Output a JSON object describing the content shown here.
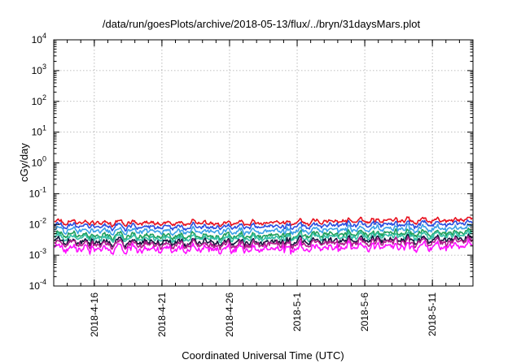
{
  "chart_data": {
    "type": "line",
    "title": "/data/run/goesPlots/archive/2018-05-13/flux/../bryn/31daysMars.plot",
    "xlabel": "Coordinated Universal Time (UTC)",
    "ylabel": "cGy/day",
    "yscale": "log",
    "ylim": [
      0.0001,
      10000
    ],
    "y_ticks": [
      {
        "base": "10",
        "exp": "-4",
        "value": 0.0001
      },
      {
        "base": "10",
        "exp": "-3",
        "value": 0.001
      },
      {
        "base": "10",
        "exp": "-2",
        "value": 0.01
      },
      {
        "base": "10",
        "exp": "-1",
        "value": 0.1
      },
      {
        "base": "10",
        "exp": "0",
        "value": 1
      },
      {
        "base": "10",
        "exp": "1",
        "value": 10
      },
      {
        "base": "10",
        "exp": "2",
        "value": 100
      },
      {
        "base": "10",
        "exp": "3",
        "value": 1000
      },
      {
        "base": "10",
        "exp": "4",
        "value": 10000
      }
    ],
    "xlim": [
      "2018-04-13",
      "2018-05-14"
    ],
    "x_ticks": [
      "2018-4-16",
      "2018-4-21",
      "2018-4-26",
      "2018-5-1",
      "2018-5-6",
      "2018-5-11"
    ],
    "x_tick_dates": [
      "2018-04-16",
      "2018-04-21",
      "2018-04-26",
      "2018-05-01",
      "2018-05-06",
      "2018-05-11"
    ],
    "grid": true,
    "legend": "none",
    "series": [
      {
        "color": "#e8101e",
        "base": 0.0125,
        "amp": 0.28
      },
      {
        "color": "#2a4fe0",
        "base": 0.0095,
        "amp": 0.3
      },
      {
        "color": "#3aa0e6",
        "base": 0.0068,
        "amp": 0.32
      },
      {
        "color": "#1e9e5a",
        "base": 0.0048,
        "amp": 0.34
      },
      {
        "color": "#36c0a8",
        "base": 0.004,
        "amp": 0.34
      },
      {
        "color": "#14143c",
        "base": 0.003,
        "amp": 0.36
      },
      {
        "color": "#b01e8c",
        "base": 0.0025,
        "amp": 0.38
      },
      {
        "color": "#ff10ff",
        "base": 0.0018,
        "amp": 0.42
      }
    ]
  }
}
